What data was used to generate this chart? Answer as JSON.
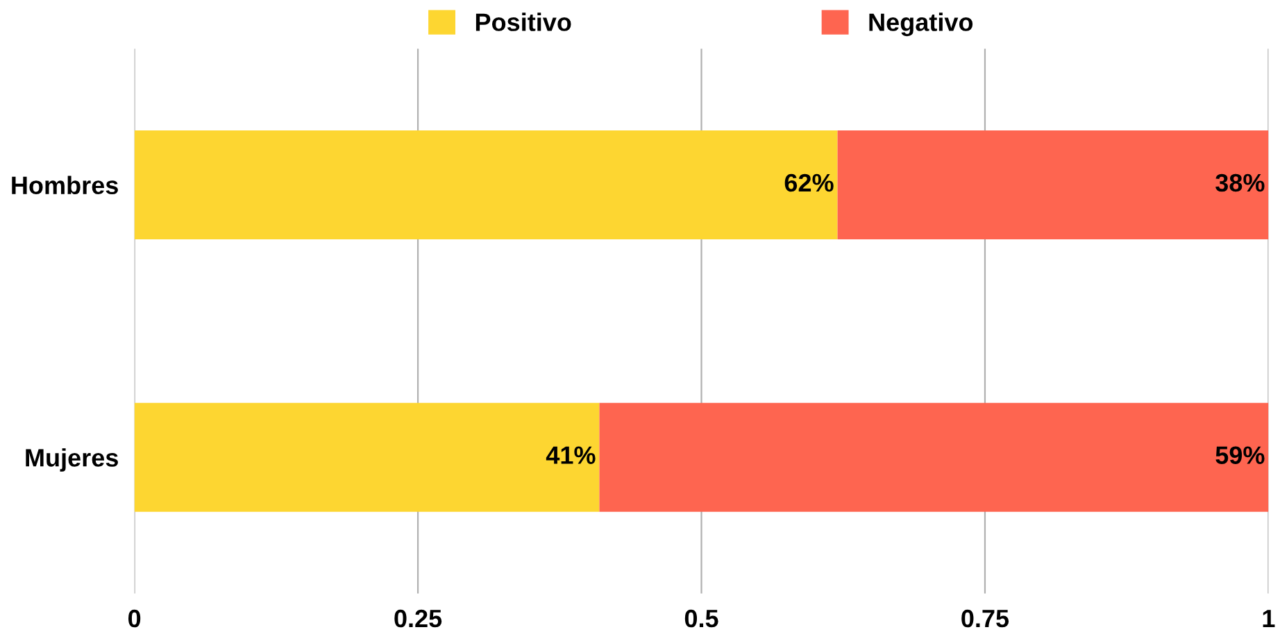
{
  "chart_data": {
    "type": "bar",
    "orientation": "horizontal",
    "stacked": true,
    "categories": [
      "Hombres",
      "Mujeres"
    ],
    "series": [
      {
        "name": "Positivo",
        "color": "#fdd631",
        "values": [
          0.62,
          0.41
        ],
        "value_labels": [
          "62%",
          "41%"
        ]
      },
      {
        "name": "Negativo",
        "color": "#fe6550",
        "values": [
          0.38,
          0.59
        ],
        "value_labels": [
          "38%",
          "59%"
        ]
      }
    ],
    "xlim": [
      0,
      1
    ],
    "xticks": [
      0,
      0.25,
      0.5,
      0.75,
      1
    ],
    "grid": "x",
    "legend": "top"
  }
}
